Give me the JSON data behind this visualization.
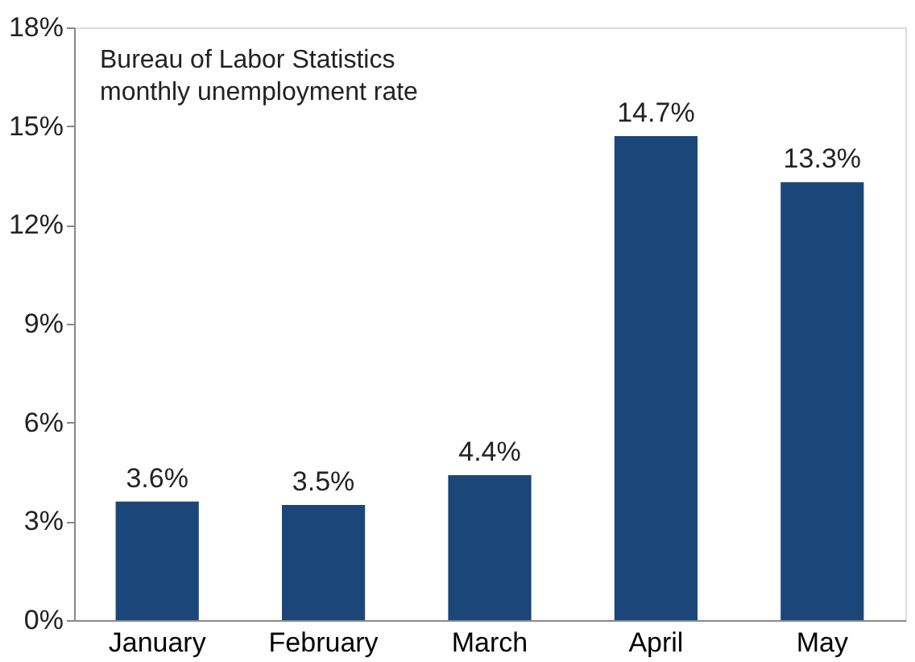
{
  "chart_data": {
    "type": "bar",
    "title": "Bureau of Labor Statistics\nmonthly unemployment rate",
    "categories": [
      "January",
      "February",
      "March",
      "April",
      "May"
    ],
    "values": [
      3.6,
      3.5,
      4.4,
      14.7,
      13.3
    ],
    "value_labels": [
      "3.6%",
      "3.5%",
      "4.4%",
      "14.7%",
      "13.3%"
    ],
    "color": "#1b4679",
    "ylim": [
      0,
      18
    ],
    "yticks": [
      {
        "value": 0,
        "label": "0%"
      },
      {
        "value": 3,
        "label": "3%"
      },
      {
        "value": 6,
        "label": "6%"
      },
      {
        "value": 9,
        "label": "9%"
      },
      {
        "value": 12,
        "label": "12%"
      },
      {
        "value": 15,
        "label": "15%"
      },
      {
        "value": 18,
        "label": "18%"
      }
    ],
    "grid": false
  }
}
